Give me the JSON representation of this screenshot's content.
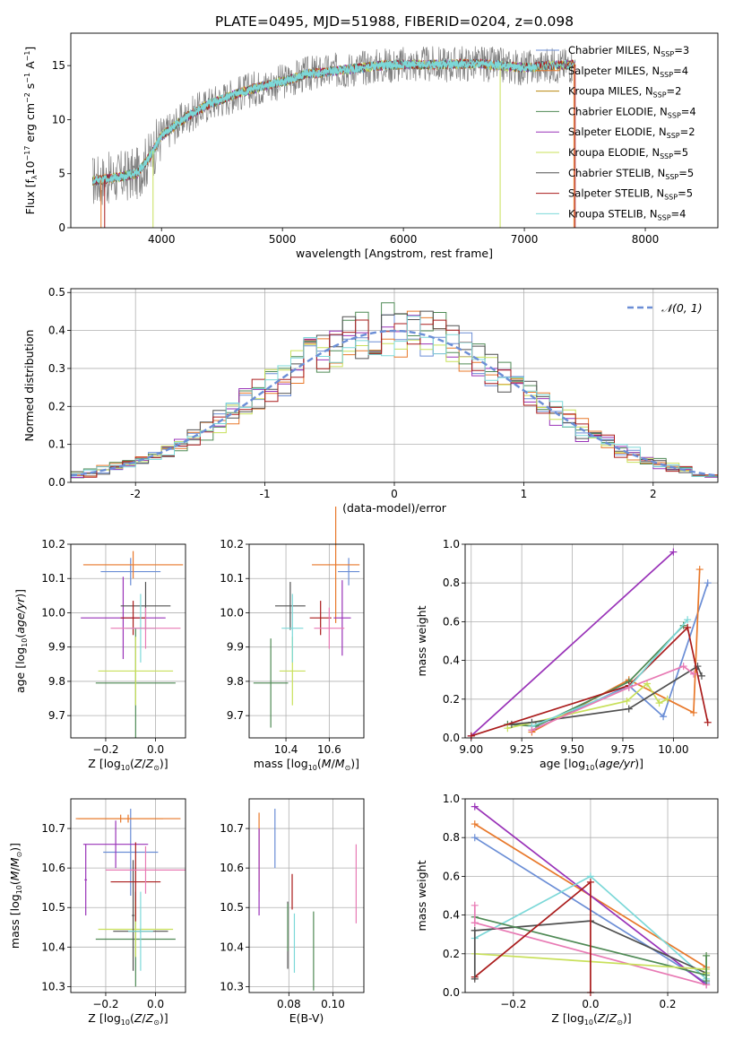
{
  "figure_title": "PLATE=0495, MJD=51988, FIBERID=0204, z=0.098",
  "colors": {
    "chabrier_miles": "#6b8ed6",
    "salpeter_miles": "#e8782a",
    "kroupa_miles": "#b8860b",
    "chabrier_elodie": "#4f8a55",
    "salpeter_elodie": "#9932b8",
    "kroupa_elodie": "#c8e05a",
    "chabrier_stelib": "#505050",
    "salpeter_stelib": "#aa1c1c",
    "kroupa_stelib": "#7cd8d8",
    "pink": "#e87ab4",
    "grid": "#b0b0b0"
  },
  "chart_data": [
    {
      "id": "spectrum",
      "type": "line",
      "xlabel": "wavelength [Angstrom, rest frame]",
      "ylabel": "Flux [f_λ 10^-17 erg cm^-2 s^-1 A^-1]",
      "xlim": [
        3250,
        8600
      ],
      "ylim": [
        0,
        18
      ],
      "xticks": [
        4000,
        5000,
        6000,
        7000,
        8000
      ],
      "yticks": [
        0,
        5,
        10,
        15
      ],
      "grid": false,
      "legend_position": "right",
      "legend": [
        {
          "main": "Chabrier MILES, N",
          "sub": "SSP",
          "tail": "=3",
          "color_key": "chabrier_miles"
        },
        {
          "main": "Salpeter MILES, N",
          "sub": "SSP",
          "tail": "=4",
          "color_key": "salpeter_miles"
        },
        {
          "main": "Kroupa MILES, N",
          "sub": "SSP",
          "tail": "=2",
          "color_key": "kroupa_miles"
        },
        {
          "main": "Chabrier ELODIE, N",
          "sub": "SSP",
          "tail": "=4",
          "color_key": "chabrier_elodie"
        },
        {
          "main": "Salpeter ELODIE, N",
          "sub": "SSP",
          "tail": "=2",
          "color_key": "salpeter_elodie"
        },
        {
          "main": "Kroupa ELODIE, N",
          "sub": "SSP",
          "tail": "=5",
          "color_key": "kroupa_elodie"
        },
        {
          "main": "Chabrier STELIB, N",
          "sub": "SSP",
          "tail": "=5",
          "color_key": "chabrier_stelib"
        },
        {
          "main": "Salpeter STELIB, N",
          "sub": "SSP",
          "tail": "=5",
          "color_key": "salpeter_stelib"
        },
        {
          "main": "Kroupa STELIB, N",
          "sub": "SSP",
          "tail": "=4",
          "color_key": "kroupa_stelib"
        }
      ],
      "continuum": {
        "x": [
          3400,
          3600,
          3800,
          3900,
          4000,
          4200,
          4400,
          4600,
          4800,
          5000,
          5200,
          5500,
          5800,
          6000,
          6300,
          6600,
          6800,
          7000,
          7200,
          7400,
          7600,
          8000,
          8400
        ],
        "y": [
          4.3,
          4.6,
          5.0,
          6.5,
          8.5,
          10.2,
          11.5,
          12.3,
          13.0,
          13.5,
          14.2,
          14.6,
          15.0,
          15.1,
          15.1,
          15.2,
          15.0,
          14.8,
          15.0,
          15.1,
          15.2,
          15.0,
          15.2
        ]
      },
      "data_range_observed": [
        3430,
        6840
      ],
      "model_range": [
        3430,
        7420
      ]
    },
    {
      "id": "residuals",
      "type": "histogram",
      "xlabel": "(data-model)/error",
      "ylabel": "Normed distribution",
      "xlim": [
        -2.5,
        2.5
      ],
      "ylim": [
        0,
        0.51
      ],
      "xticks": [
        -2,
        -1,
        0,
        1,
        2
      ],
      "yticks": [
        0.0,
        0.1,
        0.2,
        0.3,
        0.4,
        0.5
      ],
      "grid": true,
      "legend_position": "top-right",
      "legend_label": "𝒩(0, 1)",
      "bin_width": 0.1,
      "series_colors": [
        "chabrier_miles",
        "salpeter_miles",
        "chabrier_elodie",
        "salpeter_elodie",
        "kroupa_elodie",
        "chabrier_stelib",
        "salpeter_stelib",
        "kroupa_stelib"
      ],
      "normal_curve_color_key": "chabrier_miles"
    },
    {
      "id": "age_vs_Z",
      "type": "errorbar",
      "xlabel_html": "Z [log<tspan font-size='8' dy='3'>10</tspan><tspan dy='-3'>(</tspan><tspan font-style='italic'>Z</tspan>/<tspan font-style='italic'>Z</tspan><tspan font-size='8' dy='3'>⊙</tspan><tspan dy='-3'>)]</tspan>",
      "ylabel_html": "age  [log<tspan font-size='8' dy='3'>10</tspan><tspan dy='-3'>(</tspan><tspan font-style='italic'>age/yr</tspan>)]",
      "xlim": [
        -0.34,
        0.12
      ],
      "ylim": [
        9.635,
        10.2
      ],
      "xticks": [
        -0.2,
        0.0
      ],
      "xticklabels": [
        "−0.2",
        "0.0"
      ],
      "yticks": [
        9.7,
        9.8,
        9.9,
        10.0,
        10.1,
        10.2
      ],
      "grid": true,
      "points": [
        {
          "x": -0.1,
          "xerr": 0.12,
          "y": 10.12,
          "yerr": 0.04,
          "c": "chabrier_miles"
        },
        {
          "x": -0.09,
          "xerr": 0.2,
          "y": 10.14,
          "yerr": 0.04,
          "c": "salpeter_miles"
        },
        {
          "x": -0.08,
          "xerr": 0.16,
          "y": 9.795,
          "yerr": 0.16,
          "c": "chabrier_elodie"
        },
        {
          "x": -0.13,
          "xerr": 0.17,
          "y": 9.985,
          "yerr": 0.12,
          "c": "salpeter_elodie"
        },
        {
          "x": -0.08,
          "xerr": 0.15,
          "y": 9.83,
          "yerr": 0.1,
          "c": "kroupa_elodie"
        },
        {
          "x": -0.04,
          "xerr": 0.1,
          "y": 10.02,
          "yerr": 0.07,
          "c": "chabrier_stelib"
        },
        {
          "x": -0.09,
          "xerr": 0.05,
          "y": 9.985,
          "yerr": 0.05,
          "c": "salpeter_stelib"
        },
        {
          "x": -0.06,
          "xerr": 0.06,
          "y": 9.955,
          "yerr": 0.1,
          "c": "kroupa_stelib"
        },
        {
          "x": -0.04,
          "xerr": 0.14,
          "y": 9.955,
          "yerr": 0.06,
          "c": "pink"
        }
      ]
    },
    {
      "id": "age_vs_mass",
      "type": "errorbar",
      "xlabel_html": "mass [log<tspan font-size='8' dy='3'>10</tspan><tspan dy='-3'>(</tspan><tspan font-style='italic'>M</tspan>/<tspan font-style='italic'>M</tspan><tspan font-size='8' dy='3'>⊙</tspan><tspan dy='-3'>)]</tspan>",
      "xlim": [
        10.23,
        10.76
      ],
      "ylim": [
        9.635,
        10.2
      ],
      "xticks": [
        10.4,
        10.6
      ],
      "xticklabels": [
        "10.4",
        "10.6"
      ],
      "yticks": [
        9.7,
        9.8,
        9.9,
        10.0,
        10.1,
        10.2
      ],
      "grid": true,
      "points": [
        {
          "x": 10.69,
          "xerr": 0.05,
          "y": 10.12,
          "yerr": 0.04,
          "c": "chabrier_miles"
        },
        {
          "x": 10.63,
          "xerr": 0.11,
          "y": 10.14,
          "yerr": 0.17,
          "c": "salpeter_miles"
        },
        {
          "x": 10.33,
          "xerr": 0.08,
          "y": 9.795,
          "yerr": 0.13,
          "c": "chabrier_elodie"
        },
        {
          "x": 10.66,
          "xerr": 0.04,
          "y": 9.985,
          "yerr": 0.11,
          "c": "salpeter_elodie"
        },
        {
          "x": 10.43,
          "xerr": 0.06,
          "y": 9.83,
          "yerr": 0.1,
          "c": "kroupa_elodie"
        },
        {
          "x": 10.42,
          "xerr": 0.07,
          "y": 10.02,
          "yerr": 0.07,
          "c": "chabrier_stelib"
        },
        {
          "x": 10.56,
          "xerr": 0.05,
          "y": 9.985,
          "yerr": 0.05,
          "c": "salpeter_stelib"
        },
        {
          "x": 10.43,
          "xerr": 0.05,
          "y": 9.955,
          "yerr": 0.1,
          "c": "kroupa_stelib"
        },
        {
          "x": 10.6,
          "xerr": 0.07,
          "y": 9.955,
          "yerr": 0.06,
          "c": "pink"
        }
      ]
    },
    {
      "id": "mass_weight_vs_age",
      "type": "line",
      "xlabel_html": "age  [log<tspan font-size='8' dy='3'>10</tspan><tspan dy='-3'>(</tspan><tspan font-style='italic'>age/yr</tspan>)]",
      "ylabel": "mass weight",
      "xlim": [
        8.97,
        10.22
      ],
      "ylim": [
        0,
        1
      ],
      "xticks": [
        9.0,
        9.25,
        9.5,
        9.75,
        10.0
      ],
      "xticklabels": [
        "9.00",
        "9.25",
        "9.50",
        "9.75",
        "10.00"
      ],
      "yticks": [
        0.0,
        0.2,
        0.4,
        0.6,
        0.8,
        1.0
      ],
      "grid": true,
      "series": [
        {
          "c": "chabrier_miles",
          "x": [
            9.3,
            9.78,
            9.95,
            10.17
          ],
          "y": [
            0.04,
            0.27,
            0.11,
            0.8
          ]
        },
        {
          "c": "salpeter_miles",
          "x": [
            9.3,
            9.78,
            10.1,
            10.13
          ],
          "y": [
            0.03,
            0.3,
            0.13,
            0.87
          ]
        },
        {
          "c": "chabrier_elodie",
          "x": [
            9.18,
            9.32,
            9.78,
            10.05
          ],
          "y": [
            0.07,
            0.06,
            0.29,
            0.58
          ]
        },
        {
          "c": "salpeter_elodie",
          "x": [
            9.0,
            10.0
          ],
          "y": [
            0.01,
            0.96
          ]
        },
        {
          "c": "kroupa_elodie",
          "x": [
            9.18,
            9.77,
            9.87,
            9.93,
            9.97
          ],
          "y": [
            0.05,
            0.19,
            0.28,
            0.18,
            0.2
          ]
        },
        {
          "c": "chabrier_stelib",
          "x": [
            9.2,
            9.3,
            9.78,
            10.12,
            10.14
          ],
          "y": [
            0.07,
            0.08,
            0.15,
            0.37,
            0.32
          ]
        },
        {
          "c": "salpeter_stelib",
          "x": [
            9.0,
            9.78,
            10.07,
            10.17
          ],
          "y": [
            0.01,
            0.27,
            0.57,
            0.08
          ]
        },
        {
          "c": "kroupa_stelib",
          "x": [
            9.3,
            9.78,
            10.07
          ],
          "y": [
            0.06,
            0.26,
            0.61
          ]
        },
        {
          "c": "pink",
          "x": [
            9.3,
            9.78,
            10.05,
            10.1
          ],
          "y": [
            0.04,
            0.26,
            0.37,
            0.33
          ]
        }
      ]
    },
    {
      "id": "mass_vs_Z",
      "type": "errorbar",
      "xlabel_html": "Z [log<tspan font-size='8' dy='3'>10</tspan><tspan dy='-3'>(</tspan><tspan font-style='italic'>Z</tspan>/<tspan font-style='italic'>Z</tspan><tspan font-size='8' dy='3'>⊙</tspan><tspan dy='-3'>)]</tspan>",
      "ylabel_html": "mass [log<tspan font-size='8' dy='3'>10</tspan><tspan dy='-3'>(</tspan><tspan font-style='italic'>M</tspan>/<tspan font-style='italic'>M</tspan><tspan font-size='8' dy='3'>⊙</tspan><tspan dy='-3'>)]</tspan>",
      "xlim": [
        -0.34,
        0.12
      ],
      "ylim": [
        10.285,
        10.775
      ],
      "xticks": [
        -0.2,
        0.0
      ],
      "xticklabels": [
        "−0.2",
        "0.0"
      ],
      "yticks": [
        10.3,
        10.4,
        10.5,
        10.6,
        10.7
      ],
      "grid": true,
      "points": [
        {
          "x": -0.1,
          "xerr": 0.11,
          "y": 10.64,
          "yerr": 0.11,
          "c": "chabrier_miles"
        },
        {
          "x": -0.14,
          "xerr": 0.17,
          "y": 10.725,
          "yerr": 0.01,
          "c": "salpeter_miles"
        },
        {
          "x": -0.11,
          "xerr": 0.21,
          "y": 10.725,
          "yerr": 0.01,
          "c": "salpeter_miles"
        },
        {
          "x": -0.08,
          "xerr": 0.16,
          "y": 10.42,
          "yerr": 0.12,
          "c": "chabrier_elodie"
        },
        {
          "x": -0.16,
          "xerr": 0.13,
          "y": 10.66,
          "yerr": 0.06,
          "c": "salpeter_elodie"
        },
        {
          "x": -0.28,
          "xerr": 0.005,
          "y": 10.57,
          "yerr": 0.09,
          "c": "salpeter_elodie"
        },
        {
          "x": -0.08,
          "xerr": 0.15,
          "y": 10.445,
          "yerr": 0.07,
          "c": "kroupa_elodie"
        },
        {
          "x": -0.09,
          "xerr": 0.005,
          "y": 10.48,
          "yerr": 0.14,
          "c": "chabrier_stelib"
        },
        {
          "x": -0.06,
          "xerr": 0.11,
          "y": 10.44,
          "yerr": 0.005,
          "c": "chabrier_stelib"
        },
        {
          "x": -0.08,
          "xerr": 0.1,
          "y": 10.565,
          "yerr": 0.1,
          "c": "salpeter_stelib"
        },
        {
          "x": -0.06,
          "xerr": 0.05,
          "y": 10.44,
          "yerr": 0.1,
          "c": "kroupa_stelib"
        },
        {
          "x": -0.04,
          "xerr": 0.16,
          "y": 10.595,
          "yerr": 0.06,
          "c": "pink"
        }
      ]
    },
    {
      "id": "mass_vs_ebv",
      "type": "errorbar",
      "xlabel": "E(B-V)",
      "xlim": [
        0.062,
        0.114
      ],
      "ylim": [
        10.285,
        10.775
      ],
      "xticks": [
        0.08,
        0.1
      ],
      "xticklabels": [
        "0.08",
        "0.10"
      ],
      "yticks": [
        10.3,
        10.4,
        10.5,
        10.6,
        10.7
      ],
      "grid": true,
      "points": [
        {
          "x": 0.0665,
          "xerr": 0,
          "y": 10.64,
          "yerr": 0.1,
          "c": "salpeter_miles"
        },
        {
          "x": 0.0665,
          "xerr": 0,
          "y": 10.59,
          "yerr": 0.11,
          "c": "salpeter_elodie"
        },
        {
          "x": 0.0737,
          "xerr": 0,
          "y": 10.675,
          "yerr": 0.075,
          "c": "chabrier_miles"
        },
        {
          "x": 0.0795,
          "xerr": 0,
          "y": 10.43,
          "yerr": 0.085,
          "c": "chabrier_stelib"
        },
        {
          "x": 0.0795,
          "xerr": 0,
          "y": 10.45,
          "yerr": 0.06,
          "c": "chabrier_elodie"
        },
        {
          "x": 0.0815,
          "xerr": 0,
          "y": 10.54,
          "yerr": 0.045,
          "c": "salpeter_stelib"
        },
        {
          "x": 0.0825,
          "xerr": 0,
          "y": 10.41,
          "yerr": 0.075,
          "c": "kroupa_stelib"
        },
        {
          "x": 0.0912,
          "xerr": 0,
          "y": 10.39,
          "yerr": 0.1,
          "c": "chabrier_elodie"
        },
        {
          "x": 0.1105,
          "xerr": 0,
          "y": 10.56,
          "yerr": 0.1,
          "c": "pink"
        }
      ]
    },
    {
      "id": "mass_weight_vs_Z",
      "type": "line",
      "xlabel_html": "Z [log<tspan font-size='8' dy='3'>10</tspan><tspan dy='-3'>(</tspan><tspan font-style='italic'>Z</tspan>/<tspan font-style='italic'>Z</tspan><tspan font-size='8' dy='3'>⊙</tspan><tspan dy='-3'>)]</tspan>",
      "ylabel": "mass weight",
      "xlim": [
        -0.325,
        0.33
      ],
      "ylim": [
        0,
        1
      ],
      "xticks": [
        -0.2,
        0.0,
        0.2
      ],
      "xticklabels": [
        "−0.2",
        "0.0",
        "0.2"
      ],
      "yticks": [
        0.0,
        0.2,
        0.4,
        0.6,
        0.8,
        1.0
      ],
      "grid": true,
      "series": [
        {
          "c": "chabrier_miles",
          "x": [
            -0.3,
            0.3
          ],
          "y": [
            0.8,
            0.05
          ]
        },
        {
          "c": "salpeter_miles",
          "x": [
            -0.3,
            0.3
          ],
          "y": [
            0.87,
            0.13
          ]
        },
        {
          "c": "salpeter_elodie",
          "x": [
            -0.3,
            0.3
          ],
          "y": [
            0.96,
            0.04
          ]
        },
        {
          "c": "kroupa_stelib",
          "x": [
            -0.3,
            0.0,
            0.3
          ],
          "y": [
            0.28,
            0.6,
            0.07
          ]
        },
        {
          "c": "chabrier_stelib",
          "x": [
            -0.3,
            0.0,
            0.3
          ],
          "y": [
            0.32,
            0.37,
            0.1
          ]
        },
        {
          "c": "chabrier_elodie",
          "x": [
            -0.3,
            0.3
          ],
          "y": [
            0.39,
            0.09
          ]
        },
        {
          "c": "pink",
          "x": [
            -0.3,
            0.3
          ],
          "y": [
            0.36,
            0.04
          ]
        },
        {
          "c": "kroupa_elodie",
          "x": [
            -0.3,
            0.3
          ],
          "y": [
            0.2,
            0.12
          ]
        },
        {
          "c": "salpeter_stelib",
          "x": [
            -0.3,
            0.0,
            0.0
          ],
          "y": [
            0.08,
            0.57,
            0.0
          ]
        },
        {
          "c": "kroupa_elodie",
          "x": [
            0.3,
            0.3
          ],
          "y": [
            0.1,
            0.19
          ]
        },
        {
          "c": "chabrier_elodie",
          "x": [
            0.3,
            0.3
          ],
          "y": [
            0.06,
            0.19
          ]
        },
        {
          "c": "chabrier_stelib",
          "x": [
            -0.3,
            -0.3
          ],
          "y": [
            0.07,
            0.32
          ]
        },
        {
          "c": "pink",
          "x": [
            -0.3,
            -0.3
          ],
          "y": [
            0.36,
            0.45
          ]
        }
      ]
    }
  ]
}
